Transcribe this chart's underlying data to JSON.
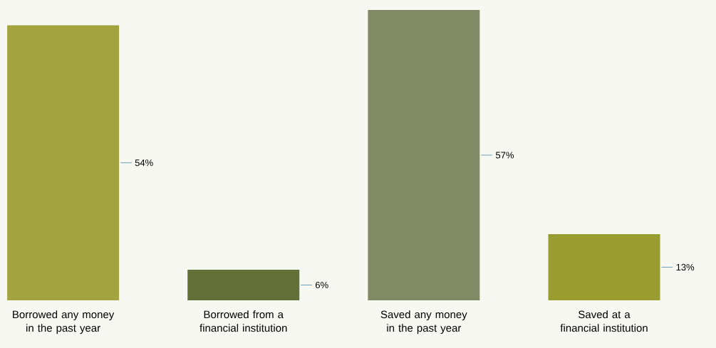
{
  "chart_data": {
    "type": "bar",
    "categories": [
      "Borrowed any money in the past year",
      "Borrowed from a financial institution",
      "Saved any money in the past year",
      "Saved at a financial institution"
    ],
    "values": [
      54,
      6,
      57,
      13
    ],
    "colors": [
      "#a3a43f",
      "#637138",
      "#808b65",
      "#999c2f"
    ],
    "value_labels": [
      "54%",
      "6%",
      "57%",
      "13%"
    ]
  }
}
